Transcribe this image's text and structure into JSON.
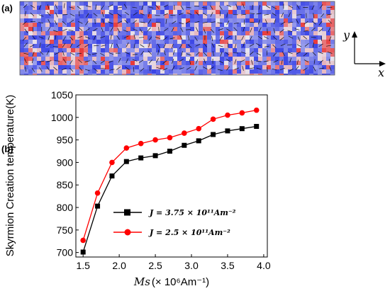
{
  "panel_a": {
    "label": "(a)",
    "axis_x_label": "x",
    "axis_y_label": "y",
    "colors": {
      "up": "#3c46e6",
      "down": "#e83a3a",
      "neutral": "#e6e6f0"
    }
  },
  "panel_b": {
    "label": "(b)"
  },
  "chart_data": {
    "type": "line",
    "xlabel_text": "Ms",
    "xlabel_unit": "(× 10⁶Am⁻¹)",
    "ylabel": "Skyrmion Creation temperature(K)",
    "xlim": [
      1.4,
      4.05
    ],
    "ylim": [
      690,
      1050
    ],
    "x_ticks": [
      "1.5",
      "2.0",
      "2.5",
      "3.0",
      "3.5",
      "4.0"
    ],
    "y_ticks": [
      "700",
      "750",
      "800",
      "850",
      "900",
      "950",
      "1000",
      "1050"
    ],
    "grid": false,
    "legend_position": "bottom-right",
    "series": [
      {
        "name": "J = 3.75 × 10¹¹Am⁻²",
        "color": "#000000",
        "marker": "square",
        "x": [
          1.5,
          1.7,
          1.9,
          2.1,
          2.3,
          2.5,
          2.7,
          2.9,
          3.1,
          3.3,
          3.5,
          3.7,
          3.9
        ],
        "y": [
          701,
          803,
          870,
          902,
          910,
          915,
          925,
          938,
          948,
          962,
          970,
          975,
          980
        ]
      },
      {
        "name": "J = 2.5 × 10¹¹Am⁻²",
        "color": "#ff0000",
        "marker": "circle",
        "x": [
          1.5,
          1.7,
          1.9,
          2.1,
          2.3,
          2.5,
          2.7,
          2.9,
          3.1,
          3.3,
          3.5,
          3.7,
          3.9
        ],
        "y": [
          727,
          832,
          900,
          932,
          942,
          950,
          955,
          965,
          975,
          996,
          1005,
          1010,
          1016
        ]
      }
    ]
  }
}
